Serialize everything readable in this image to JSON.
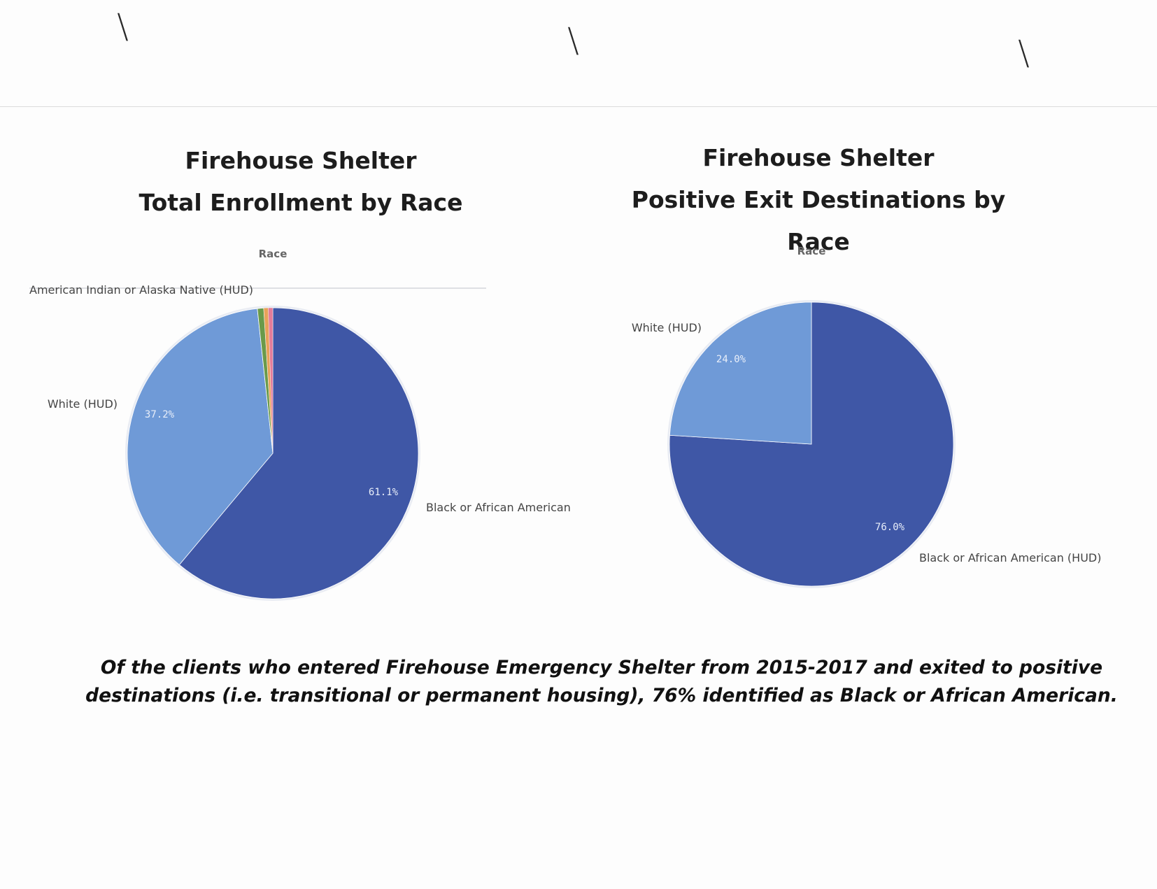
{
  "colors": {
    "dark_blue": "#3f57a6",
    "light_blue": "#6f9ad7",
    "green": "#6a9a4a",
    "orange": "#e8a25a",
    "pink": "#e37c9a",
    "label_text": "#444444",
    "pct_text": "#e8eef9"
  },
  "chart_data": [
    {
      "type": "pie",
      "title": [
        "Firehouse Shelter",
        "Total Enrollment by Race"
      ],
      "subtitle": "Race",
      "slices": [
        {
          "label": "Black or African American",
          "value": 61.1,
          "pct_label": "61.1%",
          "color": "#3f57a6"
        },
        {
          "label": "White (HUD)",
          "value": 37.2,
          "pct_label": "37.2%",
          "color": "#6f9ad7"
        },
        {
          "label": "American Indian or Alaska Native (HUD)",
          "value": 0.7,
          "pct_label": "",
          "color": "#6a9a4a"
        },
        {
          "label": "",
          "value": 0.5,
          "pct_label": "",
          "color": "#e8a25a"
        },
        {
          "label": "",
          "value": 0.5,
          "pct_label": "",
          "color": "#e37c9a"
        }
      ]
    },
    {
      "type": "pie",
      "title": [
        "Firehouse Shelter",
        "Positive Exit Destinations by Race"
      ],
      "subtitle": "Race",
      "slices": [
        {
          "label": "Black or African American (HUD)",
          "value": 76.0,
          "pct_label": "76.0%",
          "color": "#3f57a6"
        },
        {
          "label": "White (HUD)",
          "value": 24.0,
          "pct_label": "24.0%",
          "color": "#6f9ad7"
        }
      ]
    }
  ],
  "footnote": {
    "line1": "Of the clients who entered Firehouse Emergency Shelter from 2015-2017 and exited to positive",
    "line2": "destinations (i.e. transitional or permanent housing), 76% identified as Black or African American."
  }
}
